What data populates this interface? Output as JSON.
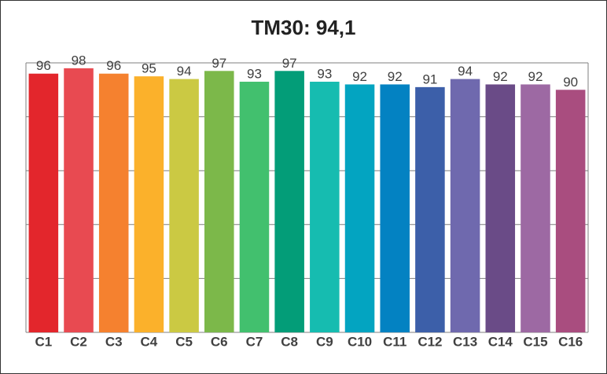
{
  "chart_data": {
    "type": "bar",
    "title": "TM30: 94,1",
    "categories": [
      "C1",
      "C2",
      "C3",
      "C4",
      "C5",
      "C6",
      "C7",
      "C8",
      "C9",
      "C10",
      "C11",
      "C12",
      "C13",
      "C14",
      "C15",
      "C16"
    ],
    "values": [
      96,
      98,
      96,
      95,
      94,
      97,
      93,
      97,
      93,
      92,
      92,
      91,
      94,
      92,
      92,
      90
    ],
    "colors": [
      "#e3262c",
      "#e84a51",
      "#f5812f",
      "#fbb12b",
      "#cbc943",
      "#7cb84a",
      "#42c06e",
      "#039d78",
      "#16bcb0",
      "#03a4c1",
      "#0382c2",
      "#3c5fa9",
      "#6f69ae",
      "#6a4b87",
      "#9d69a3",
      "#a94d7f"
    ],
    "ylim": [
      0,
      100
    ],
    "yticks": [
      0,
      20,
      40,
      60,
      80,
      100
    ],
    "grid": true
  }
}
